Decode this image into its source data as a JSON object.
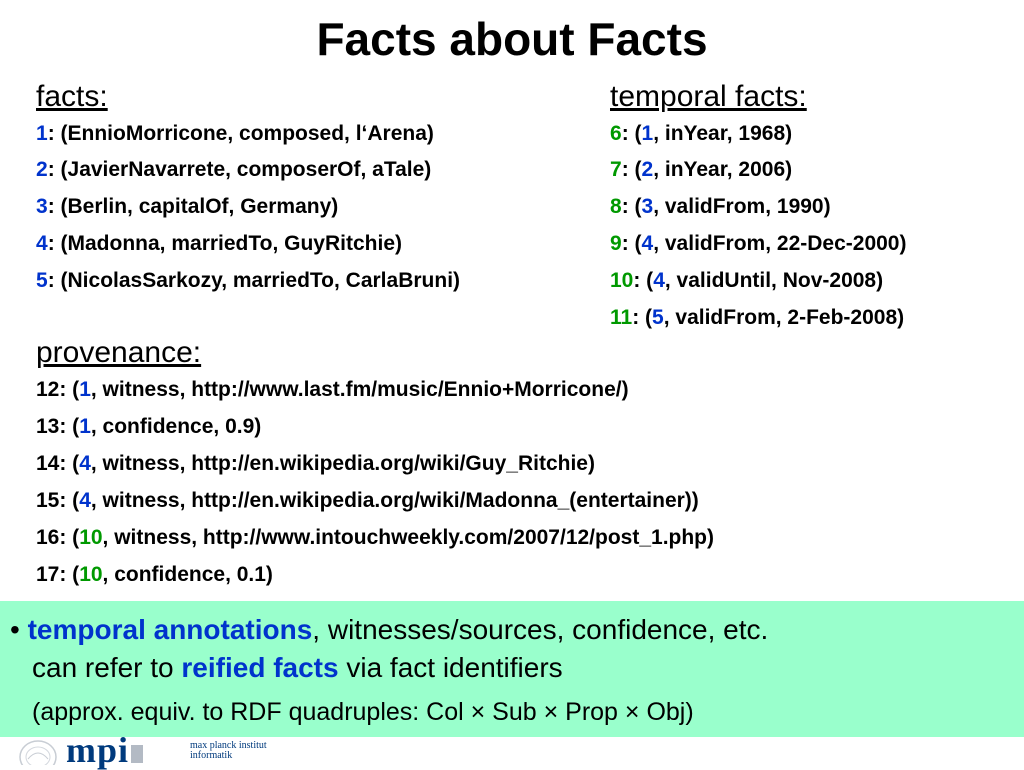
{
  "title": "Facts about Facts",
  "facts": {
    "heading": "facts:",
    "items": [
      {
        "id": "1",
        "text": ":  (EnnioMorricone, composed, l‘Arena)"
      },
      {
        "id": "2",
        "text": ":  (JavierNavarrete, composerOf, aTale)"
      },
      {
        "id": "3",
        "text": ":  (Berlin, capitalOf, Germany)"
      },
      {
        "id": "4",
        "text": ":  (Madonna, marriedTo, GuyRitchie)"
      },
      {
        "id": "5",
        "text": ":  (NicolasSarkozy, marriedTo, CarlaBruni)"
      }
    ]
  },
  "temporal": {
    "heading": "temporal facts:",
    "items": [
      {
        "id": "6",
        "sep": ":   (",
        "ref": "1",
        "rest": ", inYear, 1968)"
      },
      {
        "id": "7",
        "sep": ":   (",
        "ref": "2",
        "rest": ", inYear, 2006)"
      },
      {
        "id": "8",
        "sep": ":   (",
        "ref": "3",
        "rest": ", validFrom, 1990)"
      },
      {
        "id": "9",
        "sep": ":   (",
        "ref": "4",
        "rest": ", validFrom, 22-Dec-2000)"
      },
      {
        "id": "10",
        "sep": ": (",
        "ref": "4",
        "rest": ", validUntil, Nov-2008)"
      },
      {
        "id": "11",
        "sep": ": (",
        "ref": "5",
        "rest": ", validFrom, 2-Feb-2008)"
      }
    ]
  },
  "provenance": {
    "heading": "provenance:",
    "items": [
      {
        "prefix": "12: (",
        "ref": "1",
        "rest": ", witness, http://www.last.fm/music/Ennio+Morricone/)"
      },
      {
        "prefix": "13: (",
        "ref": "1",
        "rest": ", confidence, 0.9)"
      },
      {
        "prefix": "14: (",
        "ref": "4",
        "rest": ", witness, http://en.wikipedia.org/wiki/Guy_Ritchie)"
      },
      {
        "prefix": "15: (",
        "ref": "4",
        "rest": ", witness, http://en.wikipedia.org/wiki/Madonna_(entertainer))"
      },
      {
        "prefix": "16: (",
        "ref": "10",
        "rest": ", witness, http://www.intouchweekly.com/2007/12/post_1.php)"
      },
      {
        "prefix": "17: (",
        "ref": "10",
        "rest": ", confidence, 0.1)"
      }
    ]
  },
  "callout": {
    "bullet": "•",
    "line1_em": "temporal annotations",
    "line1_rest": ", witnesses/sources, confidence, etc.",
    "line2_pre": "can refer to ",
    "line2_em": "reified facts",
    "line2_rest": " via fact identifiers",
    "line3": "(approx. equiv. to RDF quadruples: Col × Sub × Prop × Obj)"
  },
  "footer": {
    "logo_text": "mpi",
    "institute_line1": "max planck institut",
    "institute_line2": "informatik"
  },
  "colors": {
    "blue": "#0033cc",
    "green": "#009900",
    "callout_bg": "#99ffcc"
  }
}
